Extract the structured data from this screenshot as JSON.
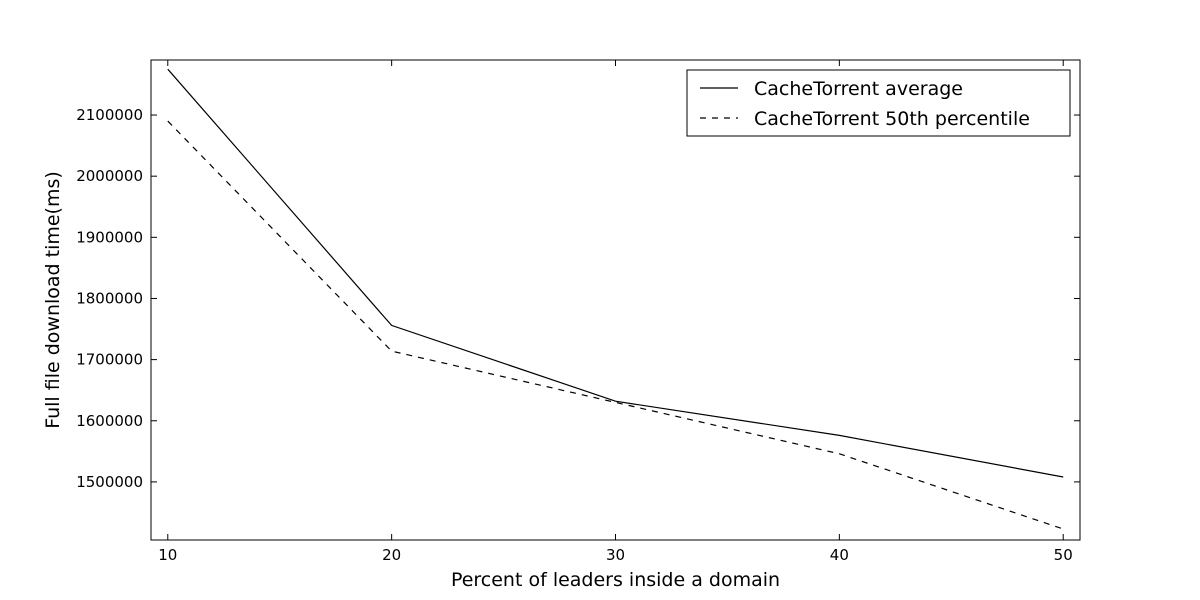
{
  "chart_data": {
    "type": "line",
    "x": [
      10,
      20,
      30,
      40,
      50
    ],
    "series": [
      {
        "name": "CacheTorrent average",
        "style": "solid",
        "color": "#000000",
        "values": [
          2175000,
          1756000,
          1632000,
          1576000,
          1508000
        ]
      },
      {
        "name": "CacheTorrent 50th percentile",
        "style": "dashed",
        "color": "#000000",
        "values": [
          2090000,
          1714000,
          1630000,
          1546000,
          1423000
        ]
      }
    ],
    "title": "",
    "xlabel": "Percent of leaders inside a domain",
    "ylabel": "Full file download time(ms)",
    "xlim": [
      9.25,
      50.75
    ],
    "ylim": [
      1405000,
      2190000
    ],
    "xticks": [
      10,
      20,
      30,
      40,
      50
    ],
    "yticks": [
      1500000,
      1600000,
      1700000,
      1800000,
      1900000,
      2000000,
      2100000
    ],
    "grid": false,
    "legend_position": "top-right"
  }
}
